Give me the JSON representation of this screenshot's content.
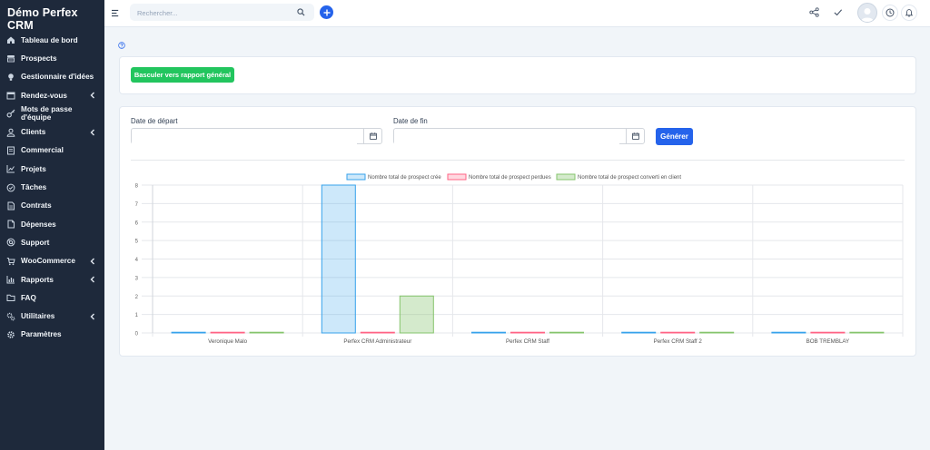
{
  "app": {
    "title": "Démo Perfex CRM"
  },
  "sidebar": {
    "items": [
      {
        "label": "Tableau de bord",
        "icon": "home-icon",
        "chevron": false
      },
      {
        "label": "Prospects",
        "icon": "tty-icon",
        "chevron": false
      },
      {
        "label": "Gestionnaire d'idées",
        "icon": "lightbulb-icon",
        "chevron": false
      },
      {
        "label": "Rendez-vous",
        "icon": "calendar-icon",
        "chevron": true
      },
      {
        "label": "Mots de passe d'équipe",
        "icon": "key-icon",
        "chevron": false
      },
      {
        "label": "Clients",
        "icon": "user-icon",
        "chevron": true
      },
      {
        "label": "Commercial",
        "icon": "receipt-icon",
        "chevron": false
      },
      {
        "label": "Projets",
        "icon": "chart-icon",
        "chevron": false
      },
      {
        "label": "Tâches",
        "icon": "check-circle-icon",
        "chevron": false
      },
      {
        "label": "Contrats",
        "icon": "document-icon",
        "chevron": false
      },
      {
        "label": "Dépenses",
        "icon": "file-icon",
        "chevron": false
      },
      {
        "label": "Support",
        "icon": "lifebuoy-icon",
        "chevron": false
      },
      {
        "label": "WooCommerce",
        "icon": "cart-icon",
        "chevron": true
      },
      {
        "label": "Rapports",
        "icon": "bar-chart-icon",
        "chevron": true
      },
      {
        "label": "FAQ",
        "icon": "folder-icon",
        "chevron": false
      },
      {
        "label": "Utilitaires",
        "icon": "cogs-icon",
        "chevron": true
      },
      {
        "label": "Paramètres",
        "icon": "gear-icon",
        "chevron": false
      }
    ]
  },
  "search": {
    "placeholder": "Rechercher..."
  },
  "report": {
    "switch_label": "Basculer vers rapport général",
    "start_date_label": "Date de départ",
    "end_date_label": "Date de fin",
    "generate_label": "Générer"
  },
  "colors": {
    "sidebar": "#1e293b",
    "primary": "#2563eb",
    "success": "#22c55e",
    "series_created": "#36a2eb",
    "series_lost": "#ff6384",
    "series_converted": "#85c46c"
  },
  "chart_data": {
    "type": "bar",
    "categories": [
      "Veronique Malo",
      "Perfex CRM Administrateur",
      "Perfex CRM Staff",
      "Perfex CRM Staff 2",
      "BOB TREMBLAY"
    ],
    "series": [
      {
        "name": "Nombre total de prospect crée",
        "values": [
          0,
          8,
          0,
          0,
          0
        ]
      },
      {
        "name": "Nombre total de prospect perdues",
        "values": [
          0,
          0,
          0,
          0,
          0
        ]
      },
      {
        "name": "Nombre total de prospect converti en client",
        "values": [
          0,
          2,
          0,
          0,
          0
        ]
      }
    ],
    "yticks": [
      "0",
      "1",
      "2",
      "3",
      "4",
      "5",
      "6",
      "7",
      "8"
    ],
    "ylim": [
      0,
      8
    ],
    "legend": "top",
    "grid": true
  }
}
